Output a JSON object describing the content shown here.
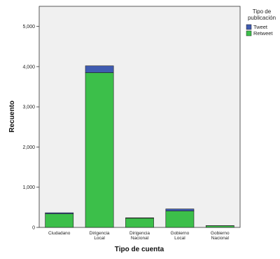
{
  "chart_data": {
    "type": "bar",
    "stacked": true,
    "xlabel": "Tipo de cuenta",
    "ylabel": "Recuento",
    "ylim": [
      0,
      5500
    ],
    "yticks": [
      0,
      1000,
      2000,
      3000,
      4000,
      5000
    ],
    "ytick_labels": [
      "0",
      "1,000",
      "2,000",
      "3,000",
      "4,000",
      "5,000"
    ],
    "categories": [
      [
        "Ciudadano"
      ],
      [
        "Dirigencia",
        "Local"
      ],
      [
        "Dirigencia",
        "Nacional"
      ],
      [
        "Gobierno",
        "Local"
      ],
      [
        "Gobierno",
        "Nacional"
      ]
    ],
    "series": [
      {
        "name": "Retweet",
        "color": "#3cbf4a",
        "values": [
          340,
          3850,
          230,
          410,
          40
        ]
      },
      {
        "name": "Tweet",
        "color": "#3f5bb0",
        "values": [
          25,
          170,
          10,
          50,
          5
        ]
      }
    ],
    "legend": {
      "title": [
        "Tipo de",
        "publicación"
      ],
      "entries": [
        "Tweet",
        "Retweet"
      ],
      "placement": "top-right"
    },
    "plot_background": "#f0f0f0",
    "grid": false
  }
}
